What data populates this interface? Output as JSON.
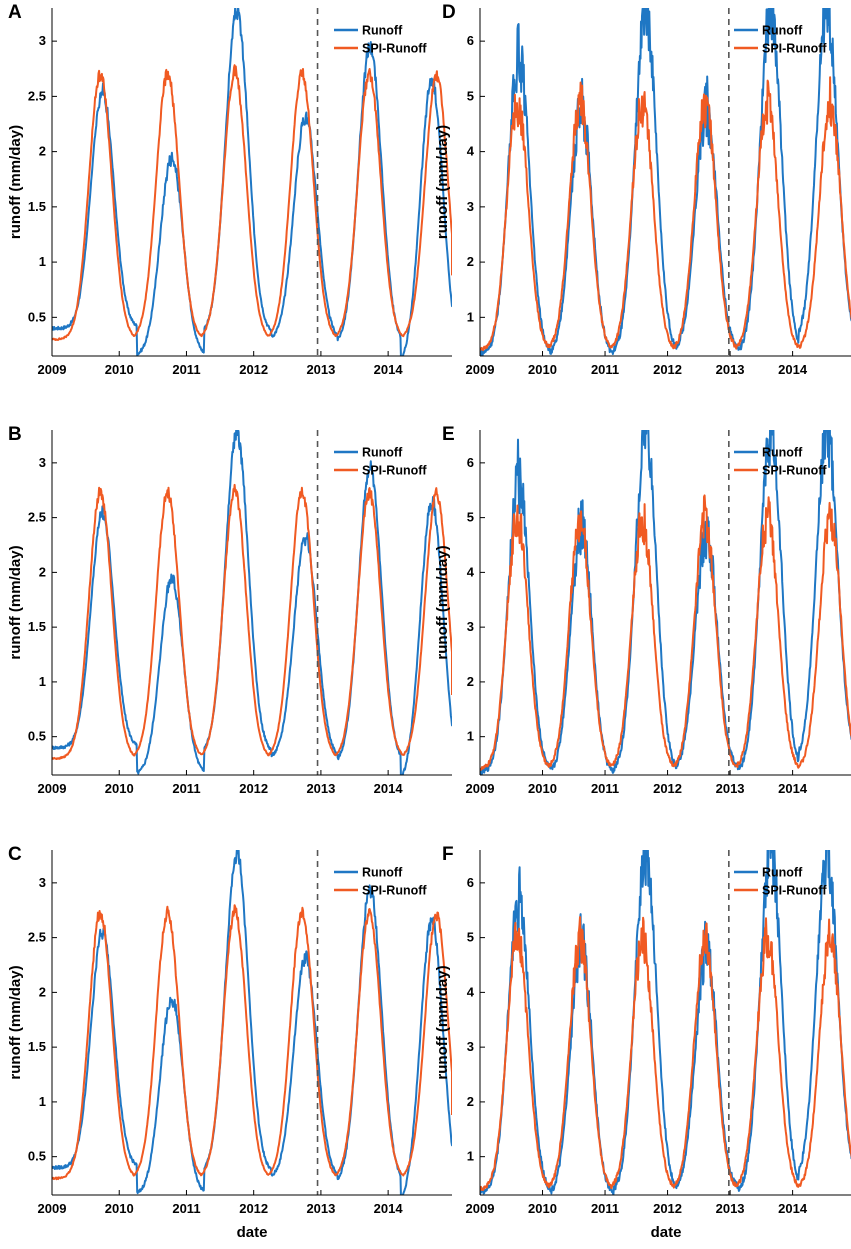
{
  "figure": {
    "xlabel": "date",
    "ylabel": "runoff (mm/day)",
    "colors": {
      "runoff": "#1f77c4",
      "spi_runoff": "#f05a22",
      "split_line": "#555555"
    }
  },
  "chart_data": [
    {
      "panel": "A",
      "type": "line",
      "title": "",
      "xlabel": "",
      "ylabel": "runoff (mm/day)",
      "xlim": [
        2009.0,
        2014.95
      ],
      "ylim": [
        0.15,
        3.3
      ],
      "x_ticks": [
        2009,
        2010,
        2011,
        2012,
        2013,
        2014
      ],
      "x_tick_labels": [
        "2009",
        "2010",
        "2011",
        "2012",
        "2013",
        "2014"
      ],
      "y_ticks": [
        0.5,
        1,
        1.5,
        2,
        2.5,
        3
      ],
      "y_tick_labels": [
        "0.5",
        "1",
        "1.5",
        "2",
        "2.5",
        "3"
      ],
      "split_date": 2012.95,
      "legend_position": "top-right",
      "series": [
        {
          "name": "Runoff",
          "color": "#1f77c4",
          "peak_x": [
            2009.75,
            2010.78,
            2011.75,
            2012.77,
            2013.73,
            2014.65
          ],
          "peak_y": [
            2.55,
            1.95,
            3.27,
            2.32,
            2.95,
            2.65
          ],
          "trough_y": [
            0.4,
            0.15,
            0.35,
            0.3,
            0.25,
            0.05
          ],
          "x_end": 2014.95,
          "y_end": 0.67
        },
        {
          "name": "SPI-Runoff",
          "color": "#f05a22",
          "peak_x": [
            2009.72,
            2010.72,
            2011.72,
            2012.72,
            2013.72,
            2014.72
          ],
          "peak_y": [
            2.7,
            2.7,
            2.72,
            2.7,
            2.7,
            2.68
          ],
          "trough_y": [
            0.3,
            0.3,
            0.3,
            0.3,
            0.3,
            0.3
          ],
          "x_end": 2014.95,
          "y_end": 0.88
        }
      ]
    },
    {
      "panel": "B",
      "type": "line",
      "title": "",
      "xlabel": "",
      "ylabel": "runoff (mm/day)",
      "xlim": [
        2009.0,
        2014.95
      ],
      "ylim": [
        0.15,
        3.3
      ],
      "x_ticks": [
        2009,
        2010,
        2011,
        2012,
        2013,
        2014
      ],
      "x_tick_labels": [
        "2009",
        "2010",
        "2011",
        "2012",
        "2013",
        "2014"
      ],
      "y_ticks": [
        0.5,
        1,
        1.5,
        2,
        2.5,
        3
      ],
      "y_tick_labels": [
        "0.5",
        "1",
        "1.5",
        "2",
        "2.5",
        "3"
      ],
      "split_date": 2012.95,
      "legend_position": "top-right",
      "series": [
        {
          "name": "Runoff",
          "color": "#1f77c4",
          "peak_x": [
            2009.75,
            2010.78,
            2011.75,
            2012.77,
            2013.73,
            2014.65
          ],
          "peak_y": [
            2.55,
            1.95,
            3.27,
            2.32,
            2.95,
            2.65
          ],
          "trough_y": [
            0.4,
            0.15,
            0.35,
            0.3,
            0.25,
            0.05
          ],
          "x_end": 2014.95,
          "y_end": 0.67
        },
        {
          "name": "SPI-Runoff",
          "color": "#f05a22",
          "peak_x": [
            2009.72,
            2010.72,
            2011.72,
            2012.72,
            2013.72,
            2014.72
          ],
          "peak_y": [
            2.73,
            2.73,
            2.74,
            2.73,
            2.73,
            2.72
          ],
          "trough_y": [
            0.3,
            0.3,
            0.3,
            0.3,
            0.3,
            0.3
          ],
          "x_end": 2014.95,
          "y_end": 0.88
        }
      ]
    },
    {
      "panel": "C",
      "type": "line",
      "title": "",
      "xlabel": "date",
      "ylabel": "runoff (mm/day)",
      "xlim": [
        2009.0,
        2014.95
      ],
      "ylim": [
        0.15,
        3.3
      ],
      "x_ticks": [
        2009,
        2010,
        2011,
        2012,
        2013,
        2014
      ],
      "x_tick_labels": [
        "2009",
        "2010",
        "2011",
        "2012",
        "2013",
        "2014"
      ],
      "y_ticks": [
        0.5,
        1,
        1.5,
        2,
        2.5,
        3
      ],
      "y_tick_labels": [
        "0.5",
        "1",
        "1.5",
        "2",
        "2.5",
        "3"
      ],
      "split_date": 2012.95,
      "legend_position": "top-right",
      "series": [
        {
          "name": "Runoff",
          "color": "#1f77c4",
          "peak_x": [
            2009.75,
            2010.78,
            2011.75,
            2012.77,
            2013.73,
            2014.65
          ],
          "peak_y": [
            2.55,
            1.95,
            3.27,
            2.32,
            2.95,
            2.65
          ],
          "trough_y": [
            0.4,
            0.15,
            0.35,
            0.3,
            0.25,
            0.05
          ],
          "x_end": 2014.95,
          "y_end": 0.67
        },
        {
          "name": "SPI-Runoff",
          "color": "#f05a22",
          "peak_x": [
            2009.72,
            2010.72,
            2011.72,
            2012.72,
            2013.72,
            2014.72
          ],
          "peak_y": [
            2.73,
            2.73,
            2.74,
            2.73,
            2.73,
            2.72
          ],
          "trough_y": [
            0.3,
            0.3,
            0.3,
            0.3,
            0.3,
            0.3
          ],
          "x_end": 2014.95,
          "y_end": 0.88
        }
      ]
    },
    {
      "panel": "D",
      "type": "line",
      "title": "",
      "xlabel": "",
      "ylabel": "runoff (mm/day)",
      "xlim": [
        2009.0,
        2014.95
      ],
      "ylim": [
        0.3,
        6.6
      ],
      "x_ticks": [
        2009,
        2010,
        2011,
        2012,
        2013,
        2014
      ],
      "x_tick_labels": [
        "2009",
        "2010",
        "2011",
        "2012",
        "2013",
        "2014"
      ],
      "y_ticks": [
        1,
        2,
        3,
        4,
        5,
        6
      ],
      "y_tick_labels": [
        "1",
        "2",
        "3",
        "4",
        "5",
        "6"
      ],
      "split_date": 2012.98,
      "legend_position": "top-right",
      "series": [
        {
          "name": "Runoff",
          "color": "#1f77c4",
          "peak_x": [
            2009.62,
            2010.62,
            2011.65,
            2012.62,
            2013.65,
            2014.55
          ],
          "peak_y": [
            5.75,
            4.85,
            6.6,
            4.8,
            6.6,
            6.6
          ],
          "trough_y": [
            0.35,
            0.3,
            0.35,
            0.4,
            0.35,
            0.55
          ],
          "x_end": 2014.95,
          "y_end": 0.65
        },
        {
          "name": "SPI-Runoff",
          "color": "#f05a22",
          "peak_x": [
            2009.6,
            2010.6,
            2011.6,
            2012.6,
            2013.6,
            2014.6
          ],
          "peak_y": [
            4.9,
            4.9,
            4.9,
            4.9,
            4.9,
            4.9
          ],
          "trough_y": [
            0.4,
            0.4,
            0.4,
            0.4,
            0.4,
            0.4
          ],
          "x_end": 2014.95,
          "y_end": 0.65
        }
      ]
    },
    {
      "panel": "E",
      "type": "line",
      "title": "",
      "xlabel": "",
      "ylabel": "runoff (mm/day)",
      "xlim": [
        2009.0,
        2014.95
      ],
      "ylim": [
        0.3,
        6.6
      ],
      "x_ticks": [
        2009,
        2010,
        2011,
        2012,
        2013,
        2014
      ],
      "x_tick_labels": [
        "2009",
        "2010",
        "2011",
        "2012",
        "2013",
        "2014"
      ],
      "y_ticks": [
        1,
        2,
        3,
        4,
        5,
        6
      ],
      "y_tick_labels": [
        "1",
        "2",
        "3",
        "4",
        "5",
        "6"
      ],
      "split_date": 2012.98,
      "legend_position": "top-right",
      "series": [
        {
          "name": "Runoff",
          "color": "#1f77c4",
          "peak_x": [
            2009.62,
            2010.62,
            2011.65,
            2012.62,
            2013.65,
            2014.55
          ],
          "peak_y": [
            5.75,
            4.85,
            6.6,
            4.8,
            6.6,
            6.6
          ],
          "trough_y": [
            0.35,
            0.3,
            0.35,
            0.4,
            0.35,
            0.55
          ],
          "x_end": 2014.95,
          "y_end": 0.65
        },
        {
          "name": "SPI-Runoff",
          "color": "#f05a22",
          "peak_x": [
            2009.6,
            2010.6,
            2011.6,
            2012.6,
            2013.6,
            2014.6
          ],
          "peak_y": [
            5.0,
            4.95,
            4.95,
            5.0,
            5.0,
            5.0
          ],
          "trough_y": [
            0.4,
            0.4,
            0.4,
            0.4,
            0.4,
            0.4
          ],
          "x_end": 2014.95,
          "y_end": 0.65
        }
      ]
    },
    {
      "panel": "F",
      "type": "line",
      "title": "",
      "xlabel": "date",
      "ylabel": "runoff (mm/day)",
      "xlim": [
        2009.0,
        2014.95
      ],
      "ylim": [
        0.3,
        6.6
      ],
      "x_ticks": [
        2009,
        2010,
        2011,
        2012,
        2013,
        2014
      ],
      "x_tick_labels": [
        "2009",
        "2010",
        "2011",
        "2012",
        "2013",
        "2014"
      ],
      "y_ticks": [
        1,
        2,
        3,
        4,
        5,
        6
      ],
      "y_tick_labels": [
        "1",
        "2",
        "3",
        "4",
        "5",
        "6"
      ],
      "split_date": 2012.98,
      "legend_position": "top-right",
      "series": [
        {
          "name": "Runoff",
          "color": "#1f77c4",
          "peak_x": [
            2009.62,
            2010.62,
            2011.65,
            2012.62,
            2013.65,
            2014.55
          ],
          "peak_y": [
            5.75,
            4.85,
            6.6,
            4.8,
            6.6,
            6.6
          ],
          "trough_y": [
            0.35,
            0.3,
            0.35,
            0.4,
            0.35,
            0.55
          ],
          "x_end": 2014.95,
          "y_end": 0.65
        },
        {
          "name": "SPI-Runoff",
          "color": "#f05a22",
          "peak_x": [
            2009.6,
            2010.6,
            2011.6,
            2012.6,
            2013.6,
            2014.6
          ],
          "peak_y": [
            5.0,
            4.95,
            4.95,
            5.0,
            5.0,
            5.0
          ],
          "trough_y": [
            0.4,
            0.4,
            0.4,
            0.4,
            0.4,
            0.4
          ],
          "x_end": 2014.95,
          "y_end": 0.65
        }
      ]
    }
  ]
}
